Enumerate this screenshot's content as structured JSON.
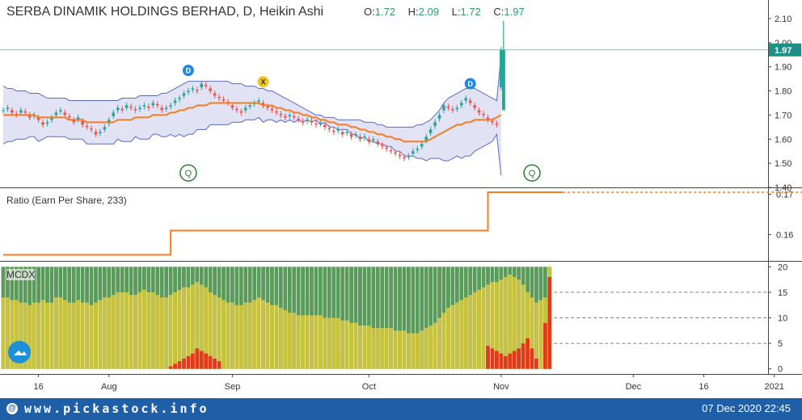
{
  "header": {
    "title": "SERBA DINAMIK HOLDINGS BERHAD, D, Heikin Ashi",
    "ohlc": [
      {
        "label": "O:",
        "value": "1.72"
      },
      {
        "label": "H:",
        "value": "2.09"
      },
      {
        "label": "L:",
        "value": "1.72"
      },
      {
        "label": "C:",
        "value": "1.97"
      }
    ]
  },
  "colors": {
    "up": "#26a69a",
    "down": "#ef5350",
    "bb_fill": "#d8d8f2",
    "bb_line": "#5c6bc0",
    "ma": "#f57c20",
    "ratio": "#f57c20",
    "mcdx_green": "#5a9a5a",
    "mcdx_yellow": "#c8c23c",
    "mcdx_red": "#e53a1a",
    "footer": "#1f5fa8"
  },
  "chart_data": [
    {
      "type": "candlestick",
      "title": "SERBA DINAMIK HOLDINGS BERHAD, D, Heikin Ashi",
      "ylim": [
        1.4,
        2.13
      ],
      "yticks": [
        "2.10",
        "2.00",
        "1.90",
        "1.80",
        "1.70",
        "1.60",
        "1.50",
        "1.40"
      ],
      "last_price_label": "1.97",
      "last_price": 1.97,
      "close": [
        1.72,
        1.73,
        1.71,
        1.7,
        1.72,
        1.71,
        1.69,
        1.7,
        1.68,
        1.66,
        1.67,
        1.69,
        1.71,
        1.72,
        1.7,
        1.69,
        1.67,
        1.69,
        1.66,
        1.65,
        1.64,
        1.62,
        1.63,
        1.65,
        1.68,
        1.71,
        1.73,
        1.72,
        1.74,
        1.73,
        1.72,
        1.73,
        1.74,
        1.73,
        1.75,
        1.74,
        1.72,
        1.73,
        1.74,
        1.76,
        1.77,
        1.79,
        1.8,
        1.81,
        1.8,
        1.83,
        1.82,
        1.8,
        1.78,
        1.77,
        1.76,
        1.75,
        1.73,
        1.72,
        1.71,
        1.73,
        1.74,
        1.75,
        1.76,
        1.74,
        1.73,
        1.72,
        1.71,
        1.7,
        1.69,
        1.7,
        1.69,
        1.68,
        1.67,
        1.68,
        1.67,
        1.66,
        1.67,
        1.65,
        1.64,
        1.63,
        1.64,
        1.62,
        1.63,
        1.61,
        1.62,
        1.6,
        1.61,
        1.59,
        1.6,
        1.58,
        1.57,
        1.56,
        1.55,
        1.54,
        1.53,
        1.52,
        1.53,
        1.55,
        1.56,
        1.58,
        1.61,
        1.64,
        1.67,
        1.7,
        1.74,
        1.73,
        1.72,
        1.73,
        1.75,
        1.77,
        1.75,
        1.73,
        1.71,
        1.7,
        1.68,
        1.67,
        1.66,
        1.97
      ],
      "bb_upper": [
        1.82,
        1.81,
        1.81,
        1.8,
        1.8,
        1.8,
        1.79,
        1.79,
        1.79,
        1.78,
        1.77,
        1.77,
        1.77,
        1.77,
        1.77,
        1.76,
        1.76,
        1.76,
        1.76,
        1.76,
        1.76,
        1.76,
        1.76,
        1.76,
        1.76,
        1.76,
        1.76,
        1.77,
        1.77,
        1.77,
        1.77,
        1.78,
        1.78,
        1.78,
        1.78,
        1.78,
        1.79,
        1.79,
        1.8,
        1.81,
        1.82,
        1.83,
        1.84,
        1.84,
        1.84,
        1.84,
        1.84,
        1.84,
        1.84,
        1.84,
        1.84,
        1.84,
        1.83,
        1.83,
        1.83,
        1.82,
        1.82,
        1.82,
        1.81,
        1.81,
        1.8,
        1.8,
        1.79,
        1.78,
        1.77,
        1.76,
        1.75,
        1.74,
        1.73,
        1.72,
        1.71,
        1.7,
        1.7,
        1.69,
        1.69,
        1.69,
        1.68,
        1.68,
        1.68,
        1.68,
        1.68,
        1.68,
        1.67,
        1.67,
        1.67,
        1.66,
        1.66,
        1.65,
        1.65,
        1.65,
        1.65,
        1.65,
        1.65,
        1.65,
        1.66,
        1.66,
        1.67,
        1.68,
        1.7,
        1.72,
        1.75,
        1.77,
        1.78,
        1.79,
        1.8,
        1.81,
        1.81,
        1.81,
        1.8,
        1.79,
        1.78,
        1.77,
        1.76,
        1.95
      ],
      "bb_mid": [
        1.7,
        1.7,
        1.7,
        1.7,
        1.7,
        1.7,
        1.7,
        1.7,
        1.69,
        1.69,
        1.69,
        1.69,
        1.69,
        1.69,
        1.69,
        1.68,
        1.68,
        1.68,
        1.68,
        1.67,
        1.67,
        1.67,
        1.67,
        1.67,
        1.67,
        1.67,
        1.68,
        1.68,
        1.68,
        1.68,
        1.69,
        1.69,
        1.69,
        1.69,
        1.7,
        1.7,
        1.7,
        1.7,
        1.71,
        1.71,
        1.72,
        1.72,
        1.73,
        1.73,
        1.74,
        1.74,
        1.74,
        1.75,
        1.75,
        1.75,
        1.75,
        1.75,
        1.75,
        1.75,
        1.75,
        1.75,
        1.75,
        1.75,
        1.75,
        1.74,
        1.74,
        1.74,
        1.73,
        1.73,
        1.72,
        1.72,
        1.71,
        1.71,
        1.7,
        1.7,
        1.69,
        1.69,
        1.68,
        1.68,
        1.67,
        1.67,
        1.66,
        1.66,
        1.66,
        1.65,
        1.65,
        1.64,
        1.64,
        1.63,
        1.63,
        1.62,
        1.62,
        1.61,
        1.61,
        1.6,
        1.6,
        1.59,
        1.59,
        1.59,
        1.59,
        1.59,
        1.59,
        1.6,
        1.61,
        1.62,
        1.63,
        1.64,
        1.65,
        1.66,
        1.66,
        1.67,
        1.67,
        1.68,
        1.68,
        1.68,
        1.68,
        1.68,
        1.69,
        1.7
      ],
      "bb_lower": [
        1.58,
        1.59,
        1.59,
        1.6,
        1.6,
        1.6,
        1.61,
        1.61,
        1.59,
        1.6,
        1.61,
        1.61,
        1.61,
        1.61,
        1.61,
        1.6,
        1.6,
        1.6,
        1.6,
        1.58,
        1.58,
        1.58,
        1.58,
        1.58,
        1.58,
        1.58,
        1.6,
        1.59,
        1.59,
        1.59,
        1.61,
        1.6,
        1.6,
        1.6,
        1.62,
        1.62,
        1.61,
        1.61,
        1.62,
        1.61,
        1.62,
        1.61,
        1.62,
        1.62,
        1.64,
        1.64,
        1.64,
        1.66,
        1.66,
        1.66,
        1.66,
        1.66,
        1.67,
        1.67,
        1.67,
        1.68,
        1.68,
        1.68,
        1.69,
        1.67,
        1.68,
        1.68,
        1.67,
        1.68,
        1.67,
        1.68,
        1.67,
        1.68,
        1.67,
        1.68,
        1.67,
        1.68,
        1.66,
        1.67,
        1.65,
        1.65,
        1.64,
        1.64,
        1.64,
        1.62,
        1.62,
        1.6,
        1.61,
        1.59,
        1.59,
        1.58,
        1.58,
        1.57,
        1.57,
        1.55,
        1.55,
        1.53,
        1.53,
        1.53,
        1.52,
        1.52,
        1.51,
        1.52,
        1.52,
        1.52,
        1.51,
        1.51,
        1.52,
        1.53,
        1.52,
        1.53,
        1.53,
        1.55,
        1.56,
        1.57,
        1.58,
        1.59,
        1.62,
        1.45
      ],
      "markers": [
        {
          "label": "D",
          "color": "#1e88e5",
          "bar": 42,
          "price": 1.885
        },
        {
          "label": "X",
          "color": "#f5c518",
          "bar": 59,
          "price": 1.838
        },
        {
          "label": "D",
          "color": "#1e88e5",
          "bar": 106,
          "price": 1.83
        },
        {
          "label": "Q",
          "color": "#2e7d32",
          "bar": 42,
          "price": 1.46
        },
        {
          "label": "Q",
          "color": "#2e7d32",
          "bar": 120,
          "price": 1.46
        }
      ]
    },
    {
      "type": "line",
      "title": "Ratio (Earn Per Share, 233)",
      "ylim": [
        0.1535,
        0.1715
      ],
      "yticks": [
        "0.17",
        "0.16"
      ],
      "segments": [
        {
          "from_bar": 0,
          "to_bar": 38,
          "value": 0.155
        },
        {
          "from_bar": 38,
          "to_bar": 110,
          "value": 0.161
        },
        {
          "from_bar": 110,
          "to_bar": 127,
          "value": 0.1705
        }
      ]
    },
    {
      "type": "bar",
      "title": "MCDX",
      "ylim": [
        -1,
        21
      ],
      "yticks": [
        "20",
        "15",
        "10",
        "5",
        "0"
      ],
      "total": 20,
      "yellow": [
        14,
        14,
        13.5,
        13.5,
        13,
        13,
        12.5,
        13,
        13,
        13.5,
        13,
        13,
        14,
        14,
        13.5,
        13,
        13,
        13.5,
        13,
        13,
        12.5,
        13,
        13.5,
        14,
        14,
        14.5,
        15,
        15,
        15,
        14.5,
        14.5,
        15,
        15.5,
        15,
        15,
        14.5,
        14,
        14,
        14.5,
        15,
        15.5,
        16,
        16,
        16.5,
        17,
        16.5,
        16,
        15,
        14.5,
        14,
        13.5,
        13,
        13,
        12.5,
        12.5,
        13,
        13,
        13.5,
        14,
        13.5,
        13,
        12.5,
        12.5,
        12,
        11.5,
        11,
        11,
        10.5,
        10.5,
        10.5,
        10.5,
        10.5,
        10.5,
        10,
        10,
        10,
        10,
        9.5,
        9.5,
        9,
        9,
        8.5,
        8.5,
        8.5,
        8,
        8,
        8,
        8,
        8,
        7.5,
        7.5,
        7.5,
        7,
        7,
        7,
        7.5,
        8,
        8.5,
        9,
        10,
        11,
        12,
        12.5,
        13,
        13.5,
        14,
        14.5,
        15,
        15.5,
        16,
        16.5,
        17,
        17,
        17.5,
        18,
        18.5,
        18,
        17.5,
        16.5,
        15,
        14,
        13,
        13.5,
        14,
        20
      ],
      "red": [
        0,
        0,
        0,
        0,
        0,
        0,
        0,
        0,
        0,
        0,
        0,
        0,
        0,
        0,
        0,
        0,
        0,
        0,
        0,
        0,
        0,
        0,
        0,
        0,
        0,
        0,
        0,
        0,
        0,
        0,
        0,
        0,
        0,
        0,
        0,
        0,
        0,
        0,
        0.5,
        1,
        1.5,
        2,
        2.5,
        3,
        4,
        3.5,
        3,
        2.5,
        2,
        1.5,
        0,
        0,
        0,
        0,
        0,
        0,
        0,
        0,
        0,
        0,
        0,
        0,
        0,
        0,
        0,
        0,
        0,
        0,
        0,
        0,
        0,
        0,
        0,
        0,
        0,
        0,
        0,
        0,
        0,
        0,
        0,
        0,
        0,
        0,
        0,
        0,
        0,
        0,
        0,
        0,
        0,
        0,
        0,
        0,
        0,
        0,
        0,
        0,
        0,
        0,
        0,
        0,
        0,
        0,
        0,
        0,
        0,
        0,
        0,
        0,
        4.5,
        4,
        3.5,
        3,
        2.5,
        3,
        3.5,
        4,
        5,
        6,
        4,
        2,
        0,
        9,
        18
      ]
    }
  ],
  "x_axis": {
    "labels": [
      {
        "text": "16",
        "bar": 8
      },
      {
        "text": "Aug",
        "bar": 24
      },
      {
        "text": "Sep",
        "bar": 52
      },
      {
        "text": "Oct",
        "bar": 83
      },
      {
        "text": "Nov",
        "bar": 113
      },
      {
        "text": "Dec",
        "bar": 143
      },
      {
        "text": "16",
        "bar": 159
      },
      {
        "text": "2021",
        "bar": 175
      }
    ]
  },
  "footer": {
    "site": "www.pickastock.info",
    "datetime": "07 Dec 2020 22:45"
  }
}
